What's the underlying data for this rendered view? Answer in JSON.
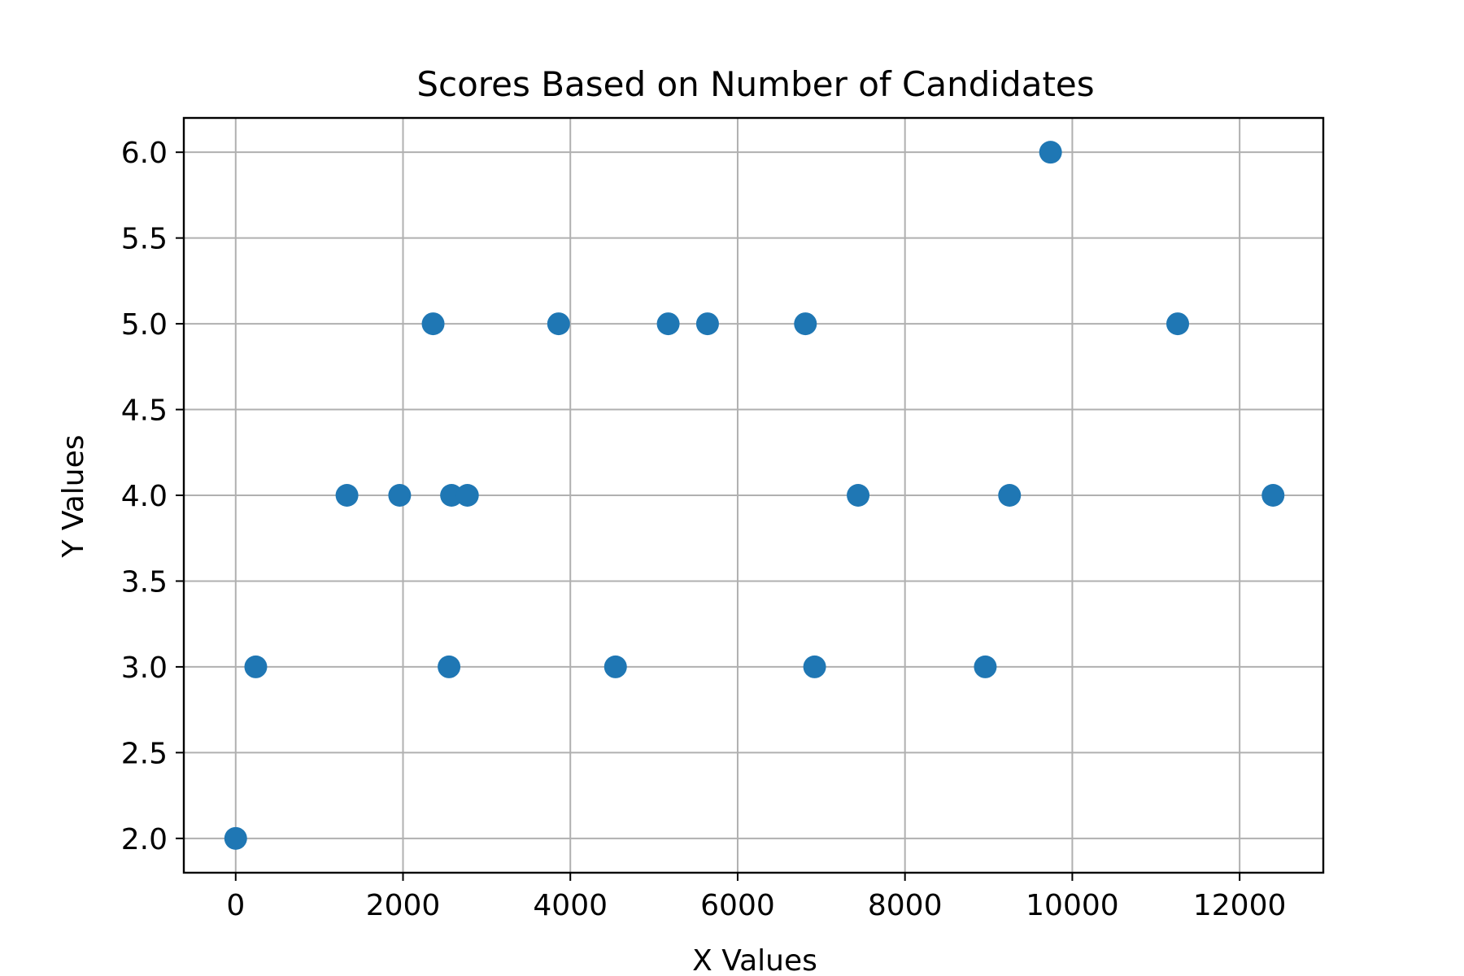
{
  "chart_data": {
    "type": "scatter",
    "title": "Scores Based on Number of Candidates",
    "xlabel": "X Values",
    "ylabel": "Y Values",
    "xlim": [
      -620,
      13000
    ],
    "ylim": [
      1.8,
      6.2
    ],
    "xticks": [
      0,
      2000,
      4000,
      6000,
      8000,
      10000,
      12000
    ],
    "yticks": [
      2.0,
      2.5,
      3.0,
      3.5,
      4.0,
      4.5,
      5.0,
      5.5,
      6.0
    ],
    "xtick_labels": [
      "0",
      "2000",
      "4000",
      "6000",
      "8000",
      "10000",
      "12000"
    ],
    "ytick_labels": [
      "2.0",
      "2.5",
      "3.0",
      "3.5",
      "4.0",
      "4.5",
      "5.0",
      "5.5",
      "6.0"
    ],
    "grid": true,
    "marker_color": "#1f77b4",
    "points": [
      {
        "x": 0,
        "y": 2
      },
      {
        "x": 240,
        "y": 3
      },
      {
        "x": 1330,
        "y": 4
      },
      {
        "x": 1960,
        "y": 4
      },
      {
        "x": 2360,
        "y": 5
      },
      {
        "x": 2550,
        "y": 3
      },
      {
        "x": 2580,
        "y": 4
      },
      {
        "x": 2770,
        "y": 4
      },
      {
        "x": 3860,
        "y": 5
      },
      {
        "x": 4540,
        "y": 3
      },
      {
        "x": 5170,
        "y": 5
      },
      {
        "x": 5640,
        "y": 5
      },
      {
        "x": 6810,
        "y": 5
      },
      {
        "x": 6920,
        "y": 3
      },
      {
        "x": 7440,
        "y": 4
      },
      {
        "x": 8960,
        "y": 3
      },
      {
        "x": 9250,
        "y": 4
      },
      {
        "x": 9740,
        "y": 6
      },
      {
        "x": 11260,
        "y": 5
      },
      {
        "x": 12400,
        "y": 4
      }
    ]
  }
}
